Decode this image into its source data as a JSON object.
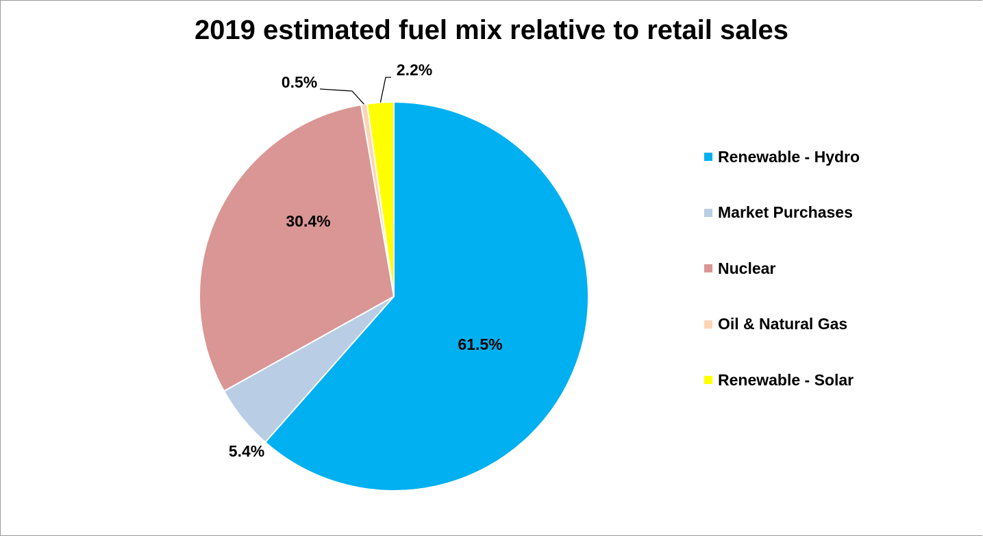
{
  "chart_data": {
    "type": "pie",
    "title": "2019 estimated fuel mix relative to retail sales",
    "slices": [
      {
        "name": "Renewable - Hydro",
        "value": 61.5,
        "label": "61.5%",
        "color": "#00b0f0"
      },
      {
        "name": "Market Purchases",
        "value": 5.4,
        "label": "5.4%",
        "color": "#b9cde4"
      },
      {
        "name": "Nuclear",
        "value": 30.4,
        "label": "30.4%",
        "color": "#d99694"
      },
      {
        "name": "Oil & Natural Gas",
        "value": 0.5,
        "label": "0.5%",
        "color": "#fcd5b5"
      },
      {
        "name": "Renewable - Solar",
        "value": 2.2,
        "label": "2.2%",
        "color": "#ffff00"
      }
    ],
    "legend_position": "right"
  }
}
